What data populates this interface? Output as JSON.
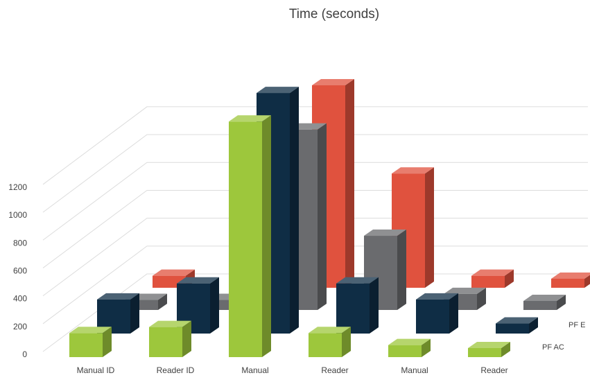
{
  "chart_data": {
    "type": "bar",
    "title": "Time (seconds)",
    "categories": [
      "Manual ID",
      "Reader ID",
      "Manual",
      "Reader",
      "Manual",
      "Reader"
    ],
    "ylim": [
      0,
      1200
    ],
    "yticks": [
      0,
      200,
      400,
      600,
      800,
      1000,
      1200
    ],
    "grid": true,
    "series": [
      {
        "name": "PF AC",
        "color": "#9dc73c",
        "values": [
          120,
          150,
          1175,
          120,
          60,
          45
        ]
      },
      {
        "name": "",
        "color": "#0f2d45",
        "values": [
          170,
          250,
          1200,
          250,
          170,
          50
        ]
      },
      {
        "name": "",
        "color": "#6a6b6e",
        "values": [
          50,
          50,
          900,
          370,
          80,
          45
        ]
      },
      {
        "name": "PF E",
        "color": "#e0523e",
        "values": [
          60,
          60,
          1010,
          570,
          60,
          45
        ]
      }
    ]
  }
}
